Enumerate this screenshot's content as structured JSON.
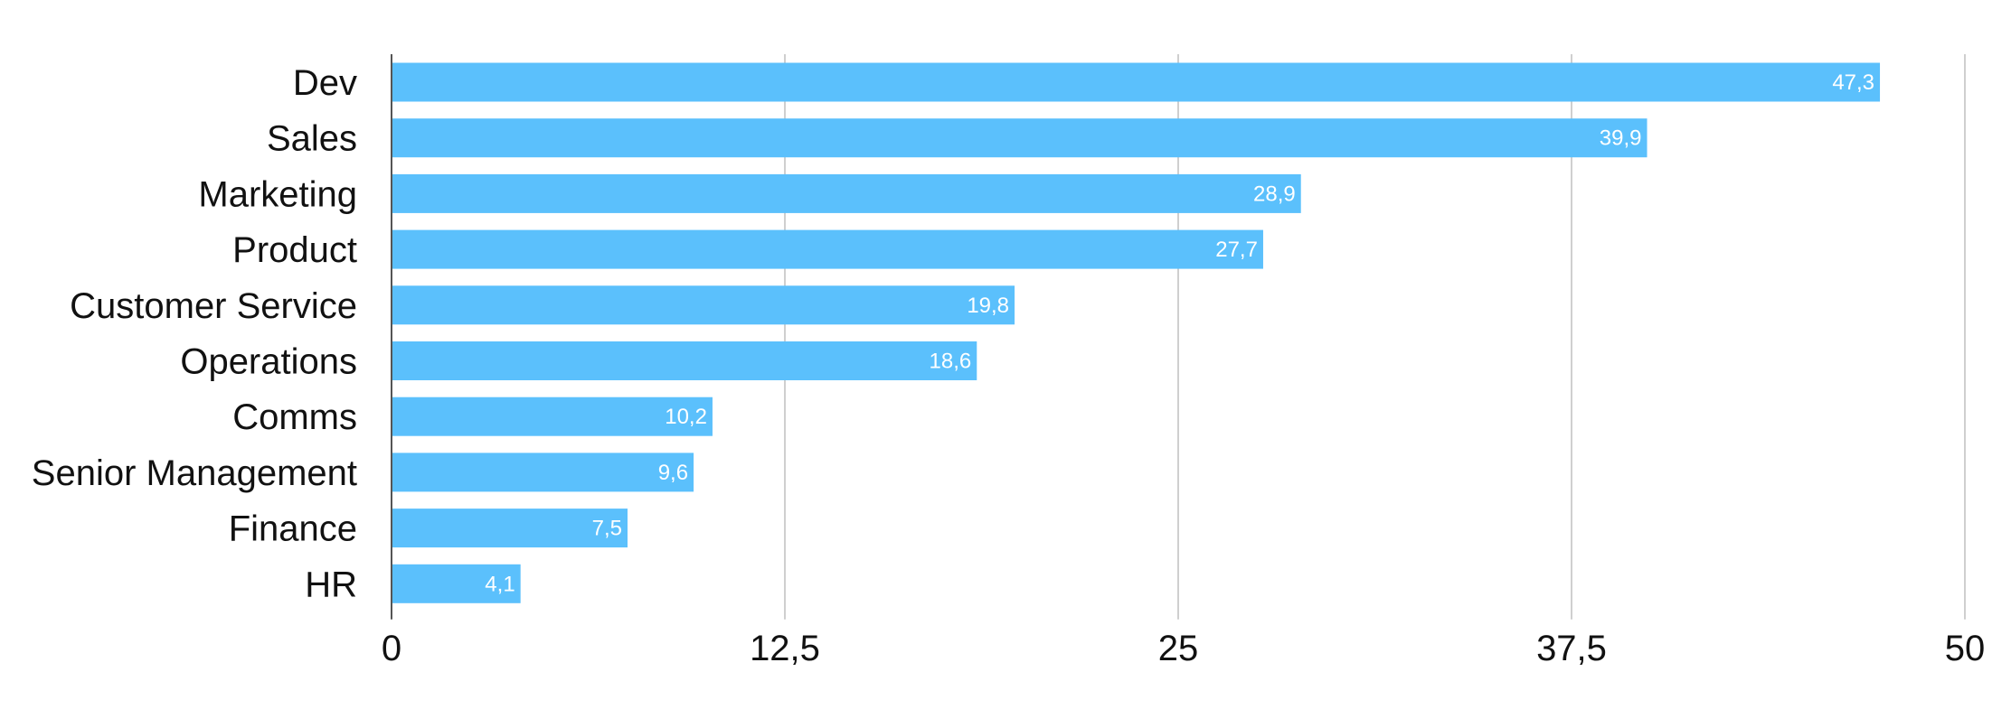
{
  "chart_data": {
    "type": "bar",
    "orientation": "horizontal",
    "categories": [
      "Dev",
      "Sales",
      "Marketing",
      "Product",
      "Customer Service",
      "Operations",
      "Comms",
      "Senior Management",
      "Finance",
      "HR"
    ],
    "values": [
      47.3,
      39.9,
      28.9,
      27.7,
      19.8,
      18.6,
      10.2,
      9.6,
      7.5,
      4.1
    ],
    "data_labels": [
      "47,3",
      "39,9",
      "28,9",
      "27,7",
      "19,8",
      "18,6",
      "10,2",
      "9,6",
      "7,5",
      "4,1"
    ],
    "title": "",
    "xlabel": "",
    "ylabel": "",
    "xlim": [
      0,
      50
    ],
    "x_ticks": [
      0,
      12.5,
      25,
      37.5,
      50
    ],
    "x_tick_labels": [
      "0",
      "12,5",
      "25",
      "37,5",
      "50"
    ],
    "grid": "vertical",
    "legend": "none",
    "colors": {
      "bar": "#5bc0fc",
      "grid": "#cfcfcf",
      "axis": "#555555",
      "text": "#111111",
      "data_label": "#ffffff"
    }
  }
}
